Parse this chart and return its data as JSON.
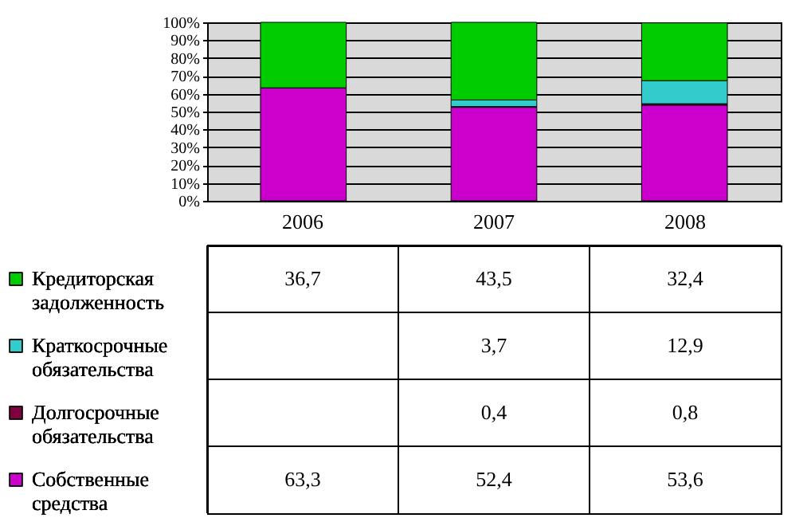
{
  "chart_data": {
    "type": "bar",
    "stacked": true,
    "categories": [
      "2006",
      "2007",
      "2008"
    ],
    "ylim": [
      0,
      100
    ],
    "yticks": [
      {
        "value": 0,
        "label": "0%"
      },
      {
        "value": 10,
        "label": "10%"
      },
      {
        "value": 20,
        "label": "20%"
      },
      {
        "value": 30,
        "label": "30%"
      },
      {
        "value": 40,
        "label": "40%"
      },
      {
        "value": 50,
        "label": "50%"
      },
      {
        "value": 60,
        "label": "60%"
      },
      {
        "value": 70,
        "label": "70%"
      },
      {
        "value": 80,
        "label": "80%"
      },
      {
        "value": 90,
        "label": "90%"
      },
      {
        "value": 100,
        "label": "100%"
      }
    ],
    "grid": "y",
    "legend": "bottom left",
    "series": [
      {
        "name": "Собственные средства",
        "color": "#cc00cc",
        "values": [
          63.3,
          52.4,
          53.6
        ],
        "value_labels": [
          "63,3",
          "52,4",
          "53,6"
        ]
      },
      {
        "name": "Долгосрочные обязательства",
        "color": "#800040",
        "values": [
          null,
          0.4,
          0.8
        ],
        "value_labels": [
          null,
          "0,4",
          "0,8"
        ]
      },
      {
        "name": "Краткосрочные обязательства",
        "color": "#33cccc",
        "values": [
          null,
          3.7,
          12.9
        ],
        "value_labels": [
          null,
          "3,7",
          "12,9"
        ]
      },
      {
        "name": "Кредиторская задолженность",
        "color": "#00cc00",
        "values": [
          36.7,
          43.5,
          32.4
        ],
        "value_labels": [
          "36,7",
          "43,5",
          "32,4"
        ]
      }
    ]
  }
}
